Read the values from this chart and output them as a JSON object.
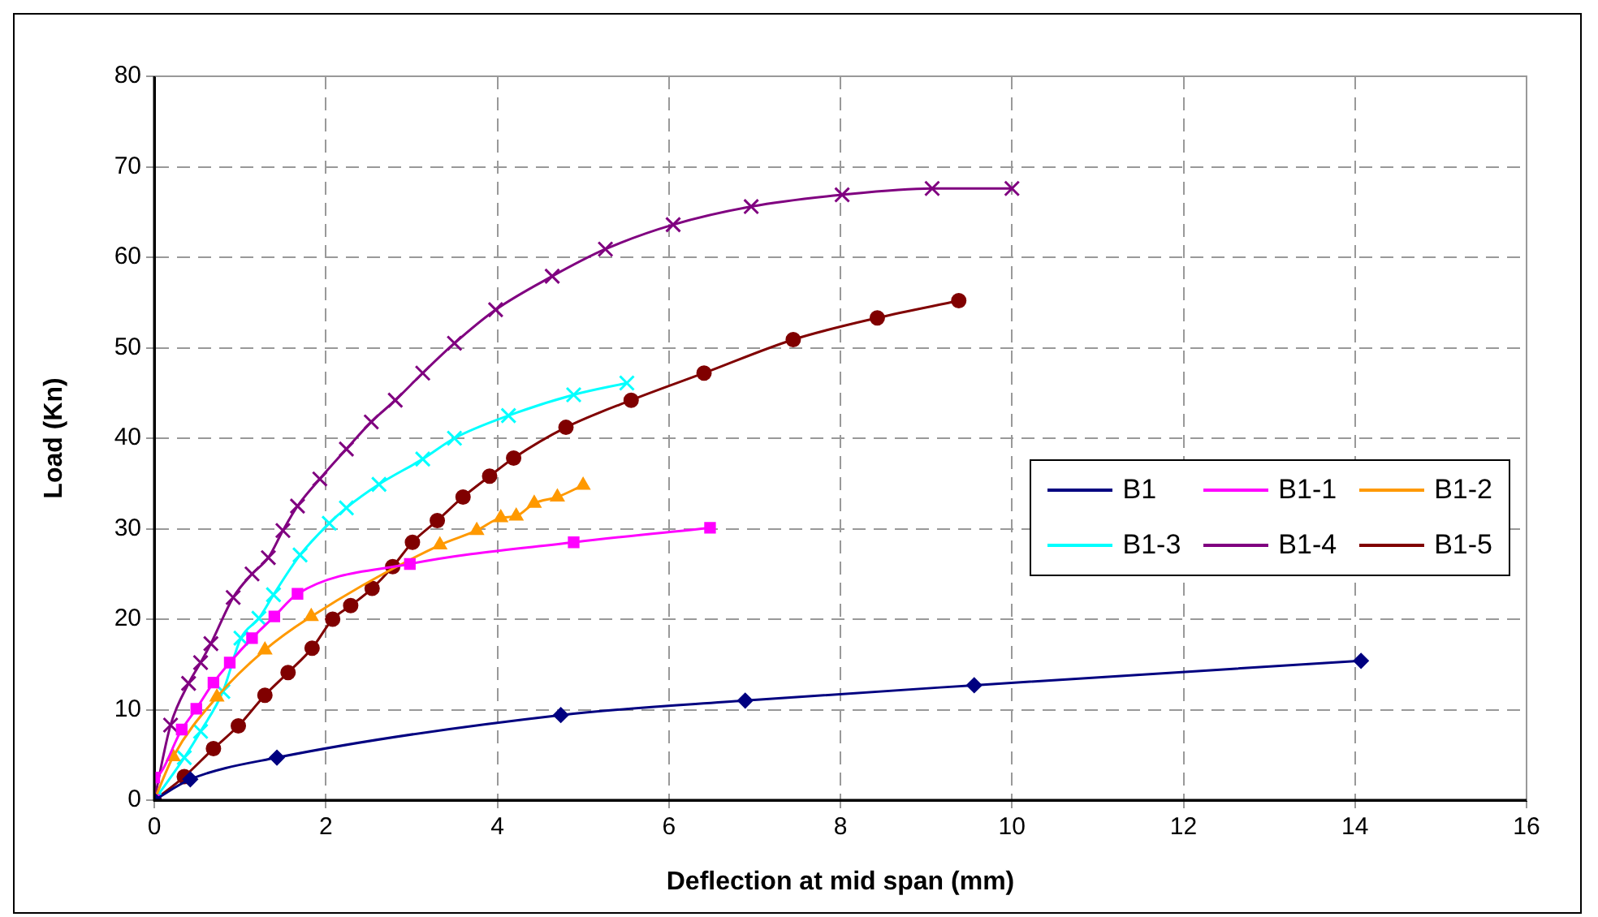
{
  "chart_data": {
    "type": "line",
    "xlabel": "Deflection at mid span (mm)",
    "ylabel": "Load (Kn)",
    "xlim": [
      0,
      16
    ],
    "xticks": [
      0,
      2,
      4,
      6,
      8,
      10,
      12,
      14,
      16
    ],
    "ylim": [
      0,
      80
    ],
    "yticks": [
      0,
      10,
      20,
      30,
      40,
      50,
      60,
      70,
      80
    ],
    "grid": true,
    "line_style": "solid",
    "legend": "right",
    "series": [
      {
        "name": "B1",
        "color": "#000080",
        "marker": "diamond",
        "x": [
          0,
          0.42,
          1.43,
          4.74,
          6.89,
          9.56,
          14.07
        ],
        "values": [
          0,
          2.3,
          4.7,
          9.4,
          11,
          12.7,
          15.4
        ]
      },
      {
        "name": "B1-1",
        "color": "#ff00ff",
        "marker": "square",
        "x": [
          0,
          0,
          0.32,
          0.49,
          0.69,
          0.88,
          1.14,
          1.4,
          1.67,
          2.98,
          4.89,
          6.48
        ],
        "values": [
          0,
          2.5,
          7.8,
          10.1,
          13,
          15.2,
          17.9,
          20.3,
          22.8,
          26.1,
          28.5,
          30.1
        ]
      },
      {
        "name": "B1-2",
        "color": "#ff9900",
        "marker": "triangle",
        "x": [
          0,
          0.22,
          0.73,
          1.29,
          1.83,
          3.33,
          3.76,
          4.04,
          4.22,
          4.43,
          4.7,
          5.0
        ],
        "values": [
          0,
          4.8,
          11.4,
          16.6,
          20.3,
          28.2,
          29.8,
          31.2,
          31.4,
          32.8,
          33.5,
          34.8
        ]
      },
      {
        "name": "B1-3",
        "color": "#00ffff",
        "marker": "cross",
        "x": [
          0,
          0.35,
          0.54,
          0.8,
          1.01,
          1.22,
          1.39,
          1.7,
          2.04,
          2.24,
          2.62,
          3.13,
          3.5,
          4.13,
          4.89,
          5.51
        ],
        "values": [
          0,
          4.7,
          7.6,
          12,
          17.9,
          20.1,
          22.7,
          27.1,
          30.6,
          32.3,
          34.9,
          37.7,
          40,
          42.5,
          44.8,
          46.1
        ]
      },
      {
        "name": "B1-4",
        "color": "#800080",
        "marker": "cross",
        "x": [
          0,
          0.19,
          0.4,
          0.54,
          0.66,
          0.92,
          1.14,
          1.33,
          1.5,
          1.67,
          1.93,
          2.24,
          2.53,
          2.81,
          3.13,
          3.5,
          3.98,
          4.64,
          5.26,
          6.05,
          6.96,
          8.02,
          9.07,
          10.0
        ],
        "values": [
          0,
          8.3,
          12.9,
          15.2,
          17.3,
          22.4,
          25,
          26.8,
          29.8,
          32.5,
          35.5,
          38.8,
          41.8,
          44.2,
          47.2,
          50.5,
          54.2,
          57.9,
          60.9,
          63.6,
          65.6,
          66.9,
          67.6,
          67.6
        ]
      },
      {
        "name": "B1-5",
        "color": "#800000",
        "marker": "circle",
        "x": [
          0,
          0.35,
          0.69,
          0.98,
          1.29,
          1.56,
          1.84,
          2.08,
          2.29,
          2.54,
          2.78,
          3.01,
          3.3,
          3.6,
          3.91,
          4.19,
          4.8,
          5.56,
          6.41,
          7.45,
          8.43,
          9.38
        ],
        "values": [
          0,
          2.6,
          5.7,
          8.2,
          11.6,
          14.1,
          16.8,
          20,
          21.5,
          23.4,
          25.8,
          28.5,
          30.9,
          33.5,
          35.8,
          37.8,
          41.2,
          44.2,
          47.2,
          50.9,
          53.3,
          55.2
        ]
      }
    ]
  }
}
